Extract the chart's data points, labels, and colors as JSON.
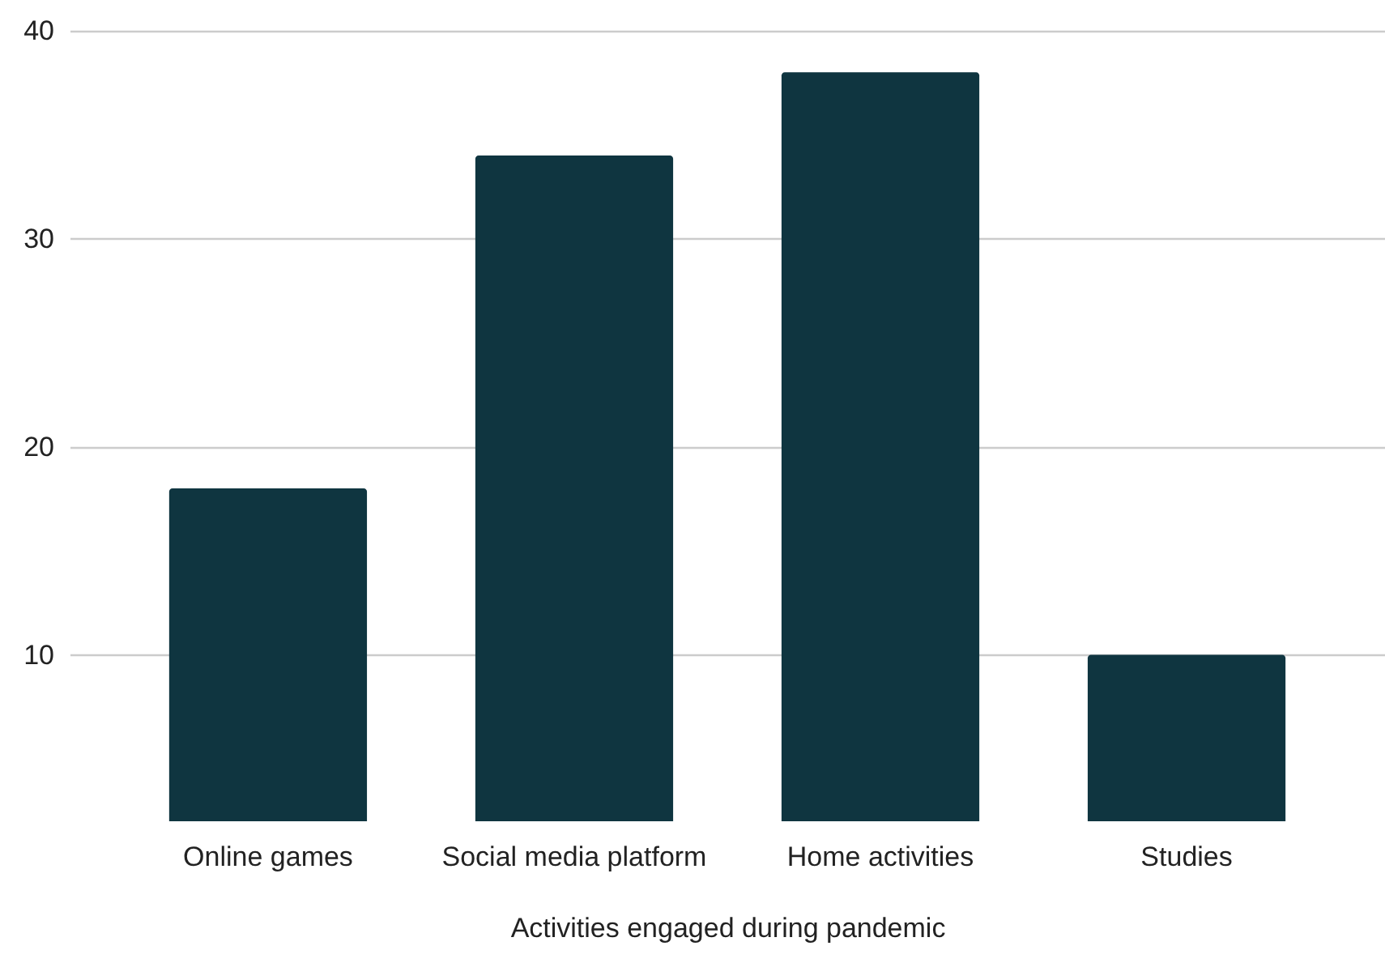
{
  "chart_data": {
    "type": "bar",
    "xlabel": "Activities engaged during pandemic",
    "categories": [
      "Online games",
      "Social media platform",
      "Home activities",
      "Studies"
    ],
    "values": [
      18,
      34,
      38,
      10
    ],
    "color": "#0f3540",
    "ylim": [
      2,
      40
    ],
    "yticks": [
      10,
      20,
      30,
      40
    ],
    "grid": "y"
  }
}
